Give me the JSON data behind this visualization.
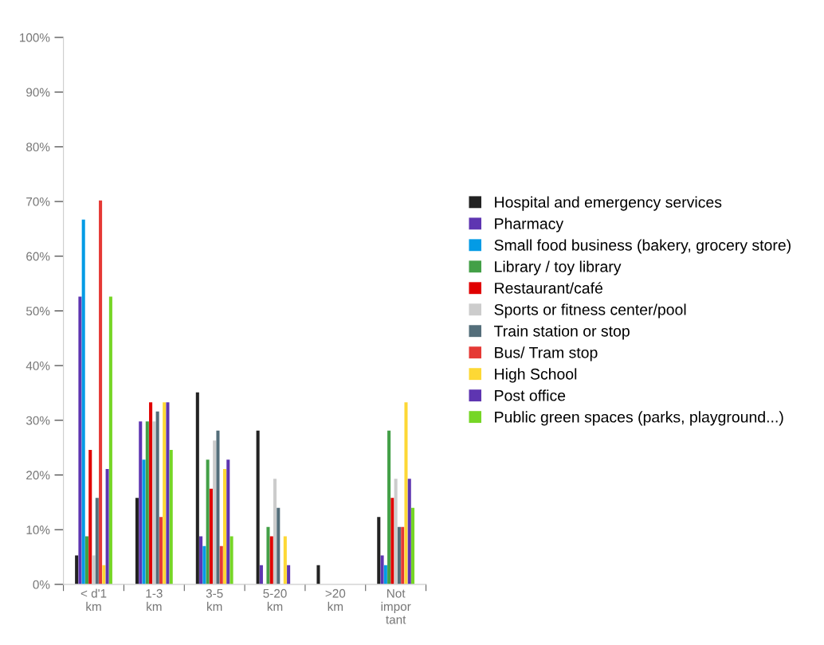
{
  "chart_data": {
    "type": "bar",
    "categories": [
      "< d'1\nkm",
      "1-3\nkm",
      "3-5\nkm",
      "5-20\nkm",
      ">20\nkm",
      "Not\nimpor\ntant"
    ],
    "series": [
      {
        "name": "Hospital and emergency services",
        "color": "#222222",
        "values": [
          5.3,
          15.8,
          35.1,
          28.1,
          3.5,
          12.3
        ]
      },
      {
        "name": "Pharmacy",
        "color": "#5e35b1",
        "values": [
          52.6,
          29.8,
          8.8,
          3.5,
          0,
          5.3
        ]
      },
      {
        "name": "Small food business (bakery, grocery store)",
        "color": "#039be5",
        "values": [
          66.7,
          22.8,
          7.0,
          0,
          0,
          3.5
        ]
      },
      {
        "name": "Library / toy library",
        "color": "#43a047",
        "values": [
          8.8,
          29.8,
          22.8,
          10.5,
          0,
          28.1
        ]
      },
      {
        "name": "Restaurant/café",
        "color": "#e00000",
        "values": [
          24.6,
          33.3,
          17.5,
          8.8,
          0,
          15.8
        ]
      },
      {
        "name": "Sports or fitness center/pool",
        "color": "#cccccc",
        "values": [
          5.3,
          29.8,
          26.3,
          19.3,
          0,
          19.3
        ]
      },
      {
        "name": "Train station or stop",
        "color": "#546e7a",
        "values": [
          15.8,
          31.6,
          28.1,
          14.0,
          0,
          10.5
        ]
      },
      {
        "name": "Bus/ Tram stop",
        "color": "#e53935",
        "values": [
          70.2,
          12.3,
          7.0,
          0,
          0,
          10.5
        ]
      },
      {
        "name": "High School",
        "color": "#fdd835",
        "values": [
          3.5,
          33.3,
          21.1,
          8.8,
          0,
          33.3
        ]
      },
      {
        "name": "Post office",
        "color": "#5e35b1",
        "values": [
          21.1,
          33.3,
          22.8,
          3.5,
          0,
          19.3
        ]
      },
      {
        "name": "Public green spaces (parks, playground...)",
        "color": "#76d626",
        "values": [
          52.6,
          24.6,
          8.8,
          0,
          0,
          14.0
        ]
      }
    ],
    "ylim": [
      0,
      100
    ],
    "yticks": [
      {
        "value": 0,
        "label": "0%"
      },
      {
        "value": 10,
        "label": "10%"
      },
      {
        "value": 20,
        "label": "20%"
      },
      {
        "value": 30,
        "label": "30%"
      },
      {
        "value": 40,
        "label": "40%"
      },
      {
        "value": 50,
        "label": "50%"
      },
      {
        "value": 60,
        "label": "60%"
      },
      {
        "value": 70,
        "label": "70%"
      },
      {
        "value": 80,
        "label": "80%"
      },
      {
        "value": 90,
        "label": "90%"
      },
      {
        "value": 100,
        "label": "100%"
      }
    ],
    "grid": false,
    "legend": "right"
  }
}
